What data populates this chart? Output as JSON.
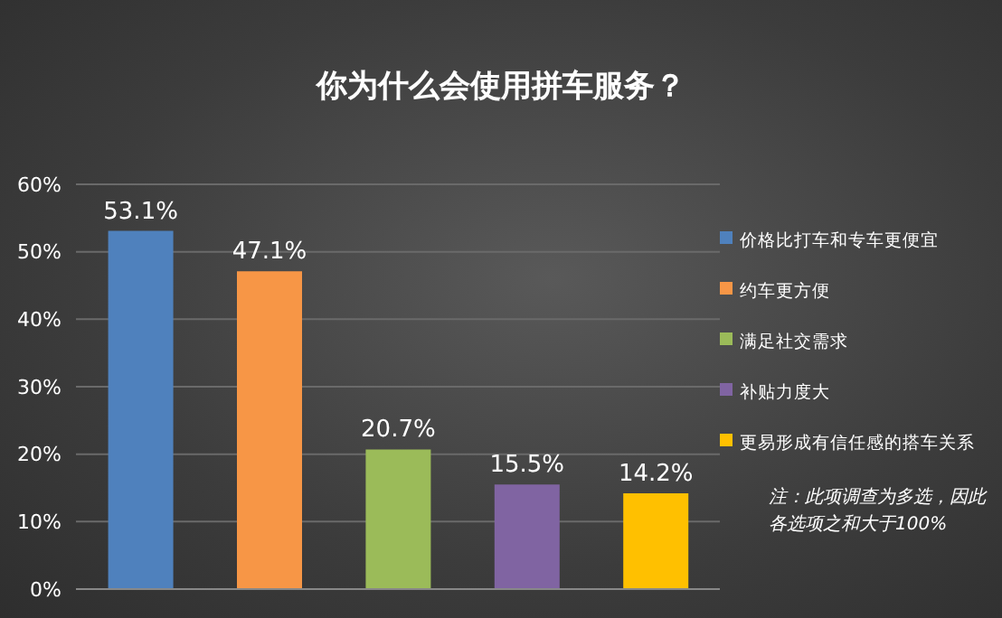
{
  "chart_data": {
    "type": "bar",
    "title": "你为什么会使用拼车服务？",
    "categories": [
      null,
      null,
      null,
      null,
      null
    ],
    "stacked": true,
    "series": [
      {
        "name": "价格比打车和专车更便宜",
        "color": "#4f81bd",
        "values": [
          53.1,
          null,
          null,
          null,
          null
        ],
        "value_labels": [
          "53.1%",
          null,
          null,
          null,
          null
        ]
      },
      {
        "name": "约车更方便",
        "color": "#f79646",
        "values": [
          null,
          47.1,
          null,
          null,
          null
        ],
        "value_labels": [
          null,
          "47.1%",
          null,
          null,
          null
        ]
      },
      {
        "name": "满足社交需求",
        "color": "#9bbb59",
        "values": [
          null,
          null,
          20.7,
          null,
          null
        ],
        "value_labels": [
          null,
          null,
          "20.7%",
          null,
          null
        ]
      },
      {
        "name": "补贴力度大",
        "color": "#8064a2",
        "values": [
          null,
          null,
          null,
          15.5,
          null
        ],
        "value_labels": [
          null,
          null,
          null,
          "15.5%",
          null
        ]
      },
      {
        "name": "更易形成有信任感的搭车关系",
        "color": "#ffc000",
        "values": [
          null,
          null,
          null,
          null,
          14.2
        ],
        "value_labels": [
          null,
          null,
          null,
          null,
          "14.2%"
        ]
      }
    ],
    "ylim": [
      0,
      60
    ],
    "yticks": [
      {
        "value": 0,
        "label": "0%"
      },
      {
        "value": 10,
        "label": "10%"
      },
      {
        "value": 20,
        "label": "20%"
      },
      {
        "value": 30,
        "label": "30%"
      },
      {
        "value": 40,
        "label": "40%"
      },
      {
        "value": 50,
        "label": "50%"
      },
      {
        "value": 60,
        "label": "60%"
      }
    ],
    "grid": "y",
    "legend": "right",
    "tick_labels": "y",
    "annotations": [
      "注：此项调查为多选，因此各选项之和大于100%"
    ]
  }
}
